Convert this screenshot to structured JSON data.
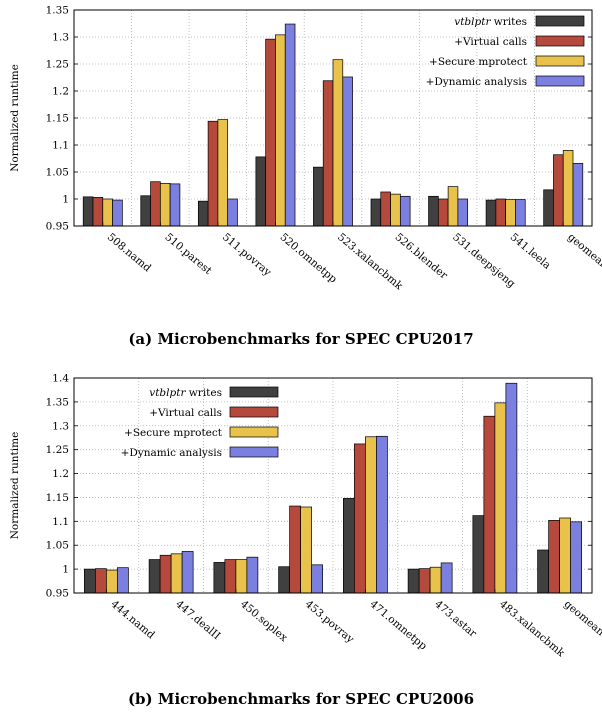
{
  "legend": {
    "items": [
      {
        "label": "vtblptr",
        "suffix": " writes",
        "italic_prefix": true,
        "color": "#404040"
      },
      {
        "label": "+Virtual calls",
        "suffix": "",
        "italic_prefix": false,
        "color": "#b5493b"
      },
      {
        "label": "+Secure mprotect",
        "suffix": "",
        "italic_prefix": false,
        "color": "#e8c24a"
      },
      {
        "label": "+Dynamic analysis",
        "suffix": "",
        "italic_prefix": false,
        "color": "#7b7fdf"
      }
    ]
  },
  "captions": {
    "a": "(a) Microbenchmarks for SPEC CPU2017",
    "b": "(b) Microbenchmarks for SPEC CPU2006"
  },
  "chart_data": [
    {
      "type": "bar",
      "ylabel": "Normalized runtime",
      "ylim": [
        0.95,
        1.35
      ],
      "yticks": [
        "0.95",
        "1",
        "1.05",
        "1.1",
        "1.15",
        "1.2",
        "1.25",
        "1.3",
        "1.35"
      ],
      "grid": true,
      "legend_position": "top-right",
      "categories": [
        "508.namd",
        "510.parest",
        "511.povray",
        "520.omnetpp",
        "523.xalancbmk",
        "526.blender",
        "531.deepsjeng",
        "541.leela",
        "geomean"
      ],
      "series": [
        {
          "name": "vtblptr writes",
          "values": [
            1.004,
            1.006,
            0.996,
            1.078,
            1.059,
            1.0,
            1.005,
            0.998,
            1.017
          ]
        },
        {
          "name": "+Virtual calls",
          "values": [
            1.003,
            1.032,
            1.144,
            1.296,
            1.219,
            1.013,
            1.0,
            1.0,
            1.082
          ]
        },
        {
          "name": "+Secure mprotect",
          "values": [
            1.0,
            1.029,
            1.147,
            1.304,
            1.258,
            1.009,
            1.023,
            0.999,
            1.09
          ]
        },
        {
          "name": "+Dynamic analysis",
          "values": [
            0.998,
            1.028,
            1.0,
            1.324,
            1.226,
            1.005,
            1.0,
            0.999,
            1.066
          ]
        }
      ]
    },
    {
      "type": "bar",
      "ylabel": "Normalized runtime",
      "ylim": [
        0.95,
        1.4
      ],
      "yticks": [
        "0.95",
        "1",
        "1.05",
        "1.1",
        "1.15",
        "1.2",
        "1.25",
        "1.3",
        "1.35",
        "1.4"
      ],
      "grid": true,
      "legend_position": "top-left",
      "categories": [
        "444.namd",
        "447.dealII",
        "450.soplex",
        "453.povray",
        "471.omnetpp",
        "473.astar",
        "483.xalancbmk",
        "geomean"
      ],
      "series": [
        {
          "name": "vtblptr writes",
          "values": [
            1.0,
            1.02,
            1.014,
            1.005,
            1.148,
            1.0,
            1.112,
            1.04
          ]
        },
        {
          "name": "+Virtual calls",
          "values": [
            1.001,
            1.029,
            1.02,
            1.132,
            1.262,
            1.001,
            1.32,
            1.102
          ]
        },
        {
          "name": "+Secure mprotect",
          "values": [
            0.998,
            1.032,
            1.02,
            1.13,
            1.277,
            1.004,
            1.348,
            1.107
          ]
        },
        {
          "name": "+Dynamic analysis",
          "values": [
            1.003,
            1.037,
            1.025,
            1.009,
            1.278,
            1.013,
            1.389,
            1.099
          ]
        }
      ]
    }
  ]
}
